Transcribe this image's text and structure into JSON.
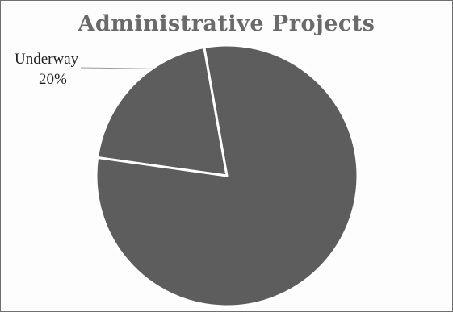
{
  "chart_data": {
    "type": "pie",
    "title": "Administrative Projects",
    "slices": [
      {
        "label": "Underway",
        "value": 20,
        "display": "20%",
        "color": "#ffffff"
      },
      {
        "label": "",
        "value": 80,
        "display": "",
        "color": "#5d5d5d"
      }
    ],
    "legend": "none"
  }
}
